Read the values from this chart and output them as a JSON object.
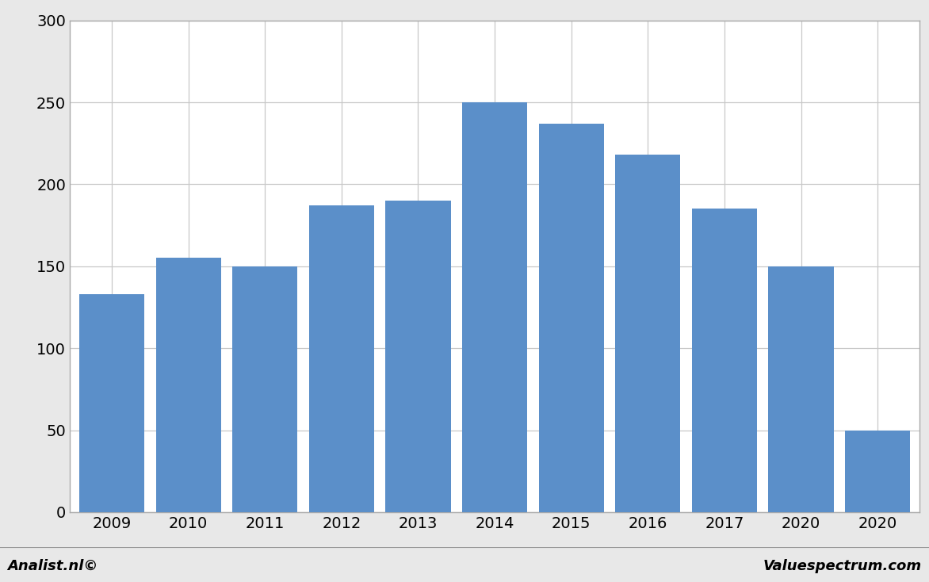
{
  "categories": [
    "2009",
    "2010",
    "2011",
    "2012",
    "2013",
    "2014",
    "2015",
    "2016",
    "2017",
    "2020",
    "2020"
  ],
  "values": [
    133,
    155,
    150,
    187,
    190,
    250,
    237,
    218,
    185,
    150,
    50
  ],
  "bar_color": "#5b8fc9",
  "background_color": "#e8e8e8",
  "plot_background_color": "#ffffff",
  "ylim": [
    0,
    300
  ],
  "yticks": [
    0,
    50,
    100,
    150,
    200,
    250,
    300
  ],
  "grid_color": "#c8c8c8",
  "footer_left": "Analist.nl©",
  "footer_right": "Valuespectrum.com",
  "footer_bg": "#c8c8c8",
  "bar_width": 0.85
}
